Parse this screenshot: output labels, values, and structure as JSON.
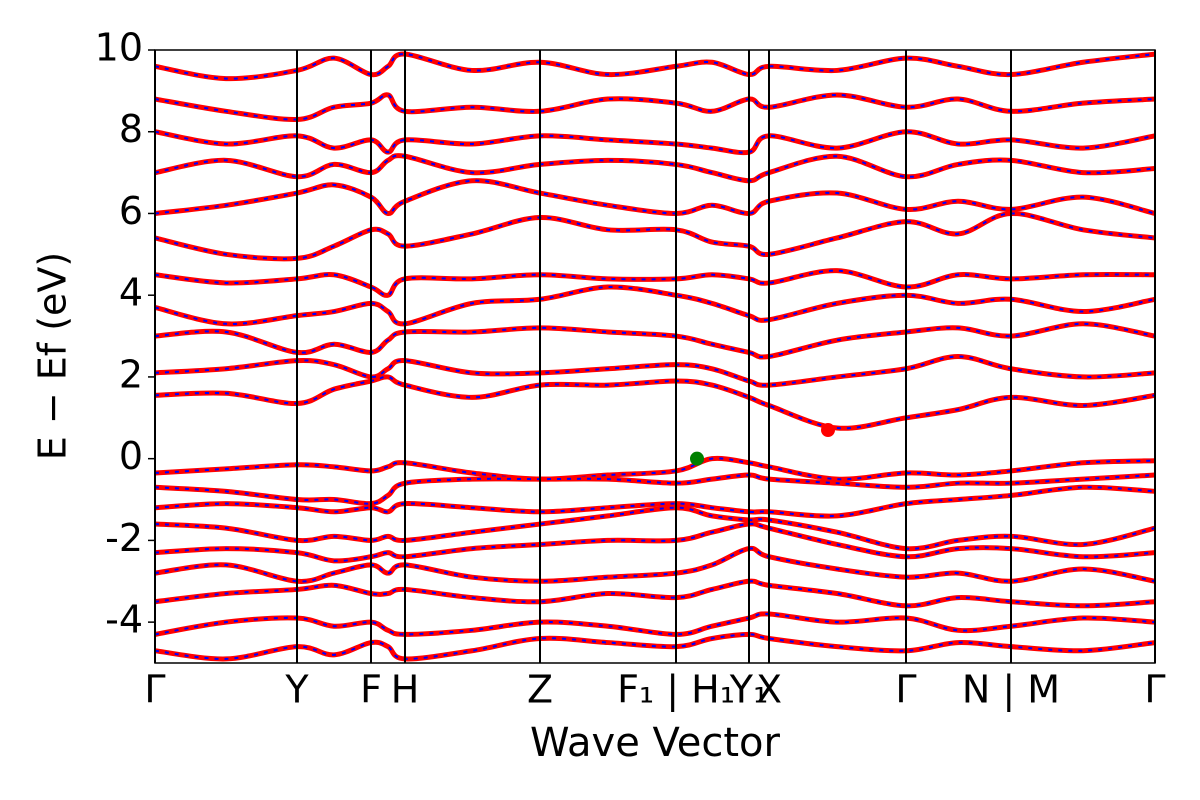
{
  "chart_data": {
    "type": "line",
    "xlabel": "Wave Vector",
    "ylabel": "E − Ef (eV)",
    "xlim": [
      0,
      1000
    ],
    "ylim": [
      -5,
      10
    ],
    "yticks": [
      -4,
      -2,
      0,
      2,
      4,
      6,
      8,
      10
    ],
    "xticks": [
      {
        "value": 0,
        "label": "Γ"
      },
      {
        "value": 142,
        "label": "Y"
      },
      {
        "value": 216,
        "label": "F"
      },
      {
        "value": 250,
        "label": "H"
      },
      {
        "value": 385,
        "label": "Z"
      },
      {
        "value": 521,
        "label": "F₁ | H₁"
      },
      {
        "value": 594,
        "label": "Y₁"
      },
      {
        "value": 614,
        "label": "X"
      },
      {
        "value": 751,
        "label": "Γ"
      },
      {
        "value": 856,
        "label": "N | M"
      },
      {
        "value": 1000,
        "label": "Γ"
      }
    ],
    "color": "#ff0000",
    "dash_color": "#0000ff",
    "x": [
      0,
      71,
      142,
      179,
      216,
      233,
      250,
      317,
      385,
      453,
      521,
      557,
      594,
      614,
      682,
      751,
      803,
      856,
      928,
      1000
    ],
    "series": [
      {
        "values": [
          -0.35,
          -0.25,
          -0.15,
          -0.2,
          -0.3,
          -0.2,
          -0.1,
          -0.35,
          -0.5,
          -0.4,
          -0.3,
          0.0,
          -0.1,
          -0.2,
          -0.5,
          -0.35,
          -0.4,
          -0.3,
          -0.1,
          -0.05
        ]
      },
      {
        "values": [
          -0.7,
          -0.8,
          -1.0,
          -1.0,
          -1.1,
          -0.9,
          -0.6,
          -0.5,
          -0.5,
          -0.5,
          -0.6,
          -0.5,
          -0.4,
          -0.5,
          -0.6,
          -0.7,
          -0.6,
          -0.6,
          -0.5,
          -0.4
        ]
      },
      {
        "values": [
          -1.2,
          -1.1,
          -1.2,
          -1.3,
          -1.2,
          -1.3,
          -1.1,
          -1.2,
          -1.3,
          -1.2,
          -1.1,
          -1.2,
          -1.3,
          -1.3,
          -1.4,
          -1.1,
          -1.0,
          -0.9,
          -0.7,
          -0.8
        ]
      },
      {
        "values": [
          -1.6,
          -1.7,
          -2.0,
          -1.9,
          -2.0,
          -1.9,
          -2.0,
          -1.8,
          -1.6,
          -1.4,
          -1.2,
          -1.4,
          -1.5,
          -1.5,
          -1.8,
          -2.2,
          -2.0,
          -1.9,
          -2.1,
          -1.7
        ]
      },
      {
        "values": [
          -2.3,
          -2.2,
          -2.3,
          -2.5,
          -2.4,
          -2.3,
          -2.4,
          -2.2,
          -2.1,
          -2.0,
          -2.0,
          -1.8,
          -1.6,
          -1.7,
          -2.1,
          -2.4,
          -2.2,
          -2.2,
          -2.4,
          -2.3
        ]
      },
      {
        "values": [
          -2.8,
          -2.6,
          -3.0,
          -2.8,
          -2.6,
          -2.8,
          -2.6,
          -2.9,
          -3.0,
          -2.9,
          -2.8,
          -2.6,
          -2.2,
          -2.4,
          -2.7,
          -2.9,
          -2.8,
          -3.0,
          -2.7,
          -3.0
        ]
      },
      {
        "values": [
          -3.5,
          -3.3,
          -3.2,
          -3.1,
          -3.3,
          -3.3,
          -3.2,
          -3.4,
          -3.5,
          -3.3,
          -3.4,
          -3.2,
          -3.0,
          -3.1,
          -3.3,
          -3.6,
          -3.4,
          -3.5,
          -3.6,
          -3.5
        ]
      },
      {
        "values": [
          -4.3,
          -4.0,
          -3.9,
          -4.1,
          -4.0,
          -4.2,
          -4.3,
          -4.2,
          -4.0,
          -4.1,
          -4.3,
          -4.1,
          -3.9,
          -3.8,
          -4.0,
          -3.9,
          -4.2,
          -4.1,
          -3.9,
          -4.0
        ]
      },
      {
        "values": [
          -4.7,
          -4.9,
          -4.6,
          -4.8,
          -4.5,
          -4.6,
          -4.9,
          -4.7,
          -4.4,
          -4.5,
          -4.6,
          -4.4,
          -4.3,
          -4.4,
          -4.6,
          -4.7,
          -4.5,
          -4.6,
          -4.7,
          -4.5
        ]
      },
      {
        "values": [
          1.55,
          1.6,
          1.35,
          1.7,
          1.9,
          2.0,
          1.8,
          1.5,
          1.8,
          1.8,
          1.9,
          1.8,
          1.5,
          1.3,
          0.75,
          1.0,
          1.2,
          1.5,
          1.3,
          1.55
        ]
      },
      {
        "values": [
          2.1,
          2.2,
          2.4,
          2.3,
          2.0,
          2.2,
          2.4,
          2.1,
          2.1,
          2.2,
          2.3,
          2.2,
          1.9,
          1.8,
          2.0,
          2.2,
          2.5,
          2.2,
          2.0,
          2.1
        ]
      },
      {
        "values": [
          3.0,
          3.1,
          2.6,
          2.8,
          2.6,
          2.9,
          3.1,
          3.1,
          3.2,
          3.1,
          3.0,
          2.8,
          2.6,
          2.5,
          2.9,
          3.1,
          3.2,
          3.0,
          3.3,
          3.0
        ]
      },
      {
        "values": [
          3.7,
          3.3,
          3.5,
          3.6,
          3.8,
          3.6,
          3.3,
          3.8,
          3.9,
          4.2,
          4.0,
          3.8,
          3.5,
          3.4,
          3.8,
          4.0,
          3.8,
          3.9,
          3.6,
          3.9
        ]
      },
      {
        "values": [
          4.5,
          4.3,
          4.4,
          4.5,
          4.2,
          4.0,
          4.4,
          4.4,
          4.5,
          4.4,
          4.4,
          4.5,
          4.4,
          4.3,
          4.6,
          4.2,
          4.5,
          4.4,
          4.5,
          4.5
        ]
      },
      {
        "values": [
          5.4,
          5.0,
          4.9,
          5.2,
          5.6,
          5.5,
          5.2,
          5.5,
          5.9,
          5.6,
          5.6,
          5.3,
          5.2,
          5.0,
          5.4,
          5.8,
          5.5,
          6.0,
          5.6,
          5.4
        ]
      },
      {
        "values": [
          6.0,
          6.2,
          6.5,
          6.7,
          6.4,
          6.0,
          6.3,
          6.8,
          6.5,
          6.2,
          6.0,
          6.2,
          6.0,
          6.3,
          6.5,
          6.1,
          6.3,
          6.1,
          6.4,
          6.0
        ]
      },
      {
        "values": [
          7.0,
          7.3,
          6.9,
          7.2,
          7.0,
          7.3,
          7.4,
          7.0,
          7.2,
          7.3,
          7.2,
          7.0,
          6.8,
          7.0,
          7.4,
          6.9,
          7.2,
          7.3,
          7.0,
          7.1
        ]
      },
      {
        "values": [
          8.0,
          7.7,
          7.9,
          7.6,
          7.8,
          7.5,
          7.8,
          7.7,
          7.9,
          7.8,
          7.7,
          7.6,
          7.5,
          7.9,
          7.6,
          8.0,
          7.7,
          7.8,
          7.6,
          7.9
        ]
      },
      {
        "values": [
          8.8,
          8.5,
          8.3,
          8.6,
          8.7,
          8.9,
          8.5,
          8.6,
          8.5,
          8.8,
          8.7,
          8.5,
          8.8,
          8.6,
          8.9,
          8.6,
          8.8,
          8.5,
          8.7,
          8.8
        ]
      },
      {
        "values": [
          9.6,
          9.3,
          9.5,
          9.8,
          9.4,
          9.6,
          9.9,
          9.5,
          9.7,
          9.4,
          9.6,
          9.7,
          9.4,
          9.6,
          9.5,
          9.8,
          9.6,
          9.4,
          9.7,
          9.9
        ]
      }
    ],
    "points": [
      {
        "x": 542,
        "y": 0,
        "color": "#008000"
      },
      {
        "x": 673,
        "y": 0.7,
        "color": "#ff0000"
      }
    ]
  }
}
